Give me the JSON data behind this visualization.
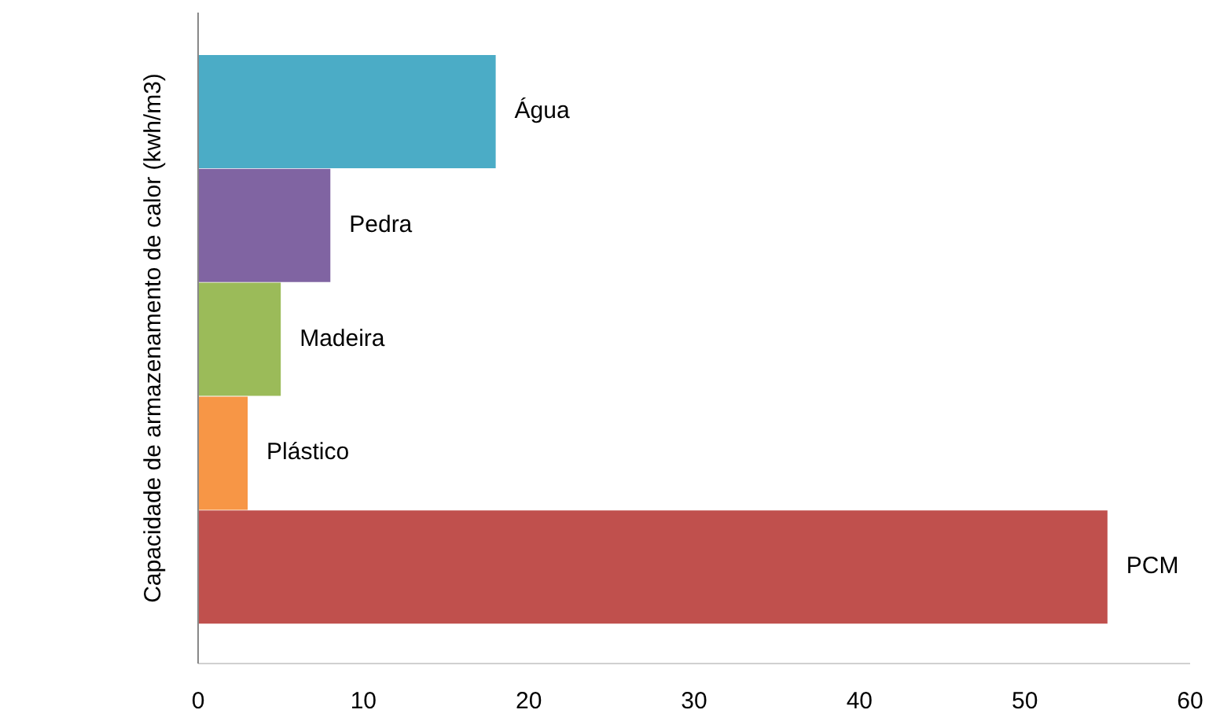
{
  "chart_data": {
    "type": "bar",
    "orientation": "horizontal",
    "ylabel": "Capacidade de armazenamento de calor (kwh/m3)",
    "categories": [
      "Água",
      "Pedra",
      "Madeira",
      "Plástico",
      "PCM"
    ],
    "values": [
      18,
      8,
      5,
      3,
      55
    ],
    "colors": [
      "#4bacc6",
      "#8064a2",
      "#9bbb59",
      "#f79646",
      "#c0504d"
    ],
    "xlim": [
      0,
      60
    ],
    "xticks": [
      0,
      10,
      20,
      30,
      40,
      50,
      60
    ],
    "grid": false,
    "legend": false
  }
}
